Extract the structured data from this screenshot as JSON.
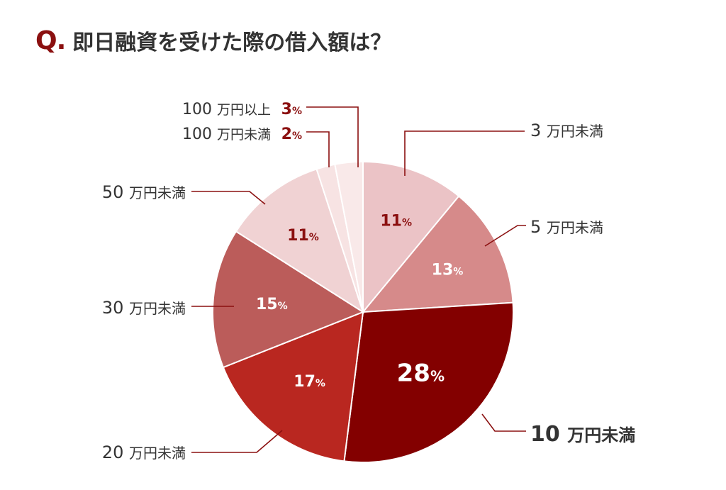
{
  "title_mark": "Q.",
  "title": "即日融資を受けた際の借入額は？",
  "chart_data": {
    "type": "pie",
    "unit": "%",
    "slices": [
      {
        "label_num": "3",
        "label_unit": "万円未満",
        "value": 11,
        "color": "#ebc3c6"
      },
      {
        "label_num": "5",
        "label_unit": "万円未満",
        "value": 13,
        "color": "#d68a8a"
      },
      {
        "label_num": "10",
        "label_unit": "万円未満",
        "value": 28,
        "color": "#830000"
      },
      {
        "label_num": "20",
        "label_unit": "万円未満",
        "value": 17,
        "color": "#b92720"
      },
      {
        "label_num": "30",
        "label_unit": "万円未満",
        "value": 15,
        "color": "#bb5c5a"
      },
      {
        "label_num": "50",
        "label_unit": "万円未満",
        "value": 11,
        "color": "#f0d2d3"
      },
      {
        "label_num": "100",
        "label_unit": "万円未満",
        "value": 2,
        "color": "#f7e3e3"
      },
      {
        "label_num": "100",
        "label_unit": "万円以上",
        "value": 3,
        "color": "#f9e9e9"
      }
    ]
  }
}
